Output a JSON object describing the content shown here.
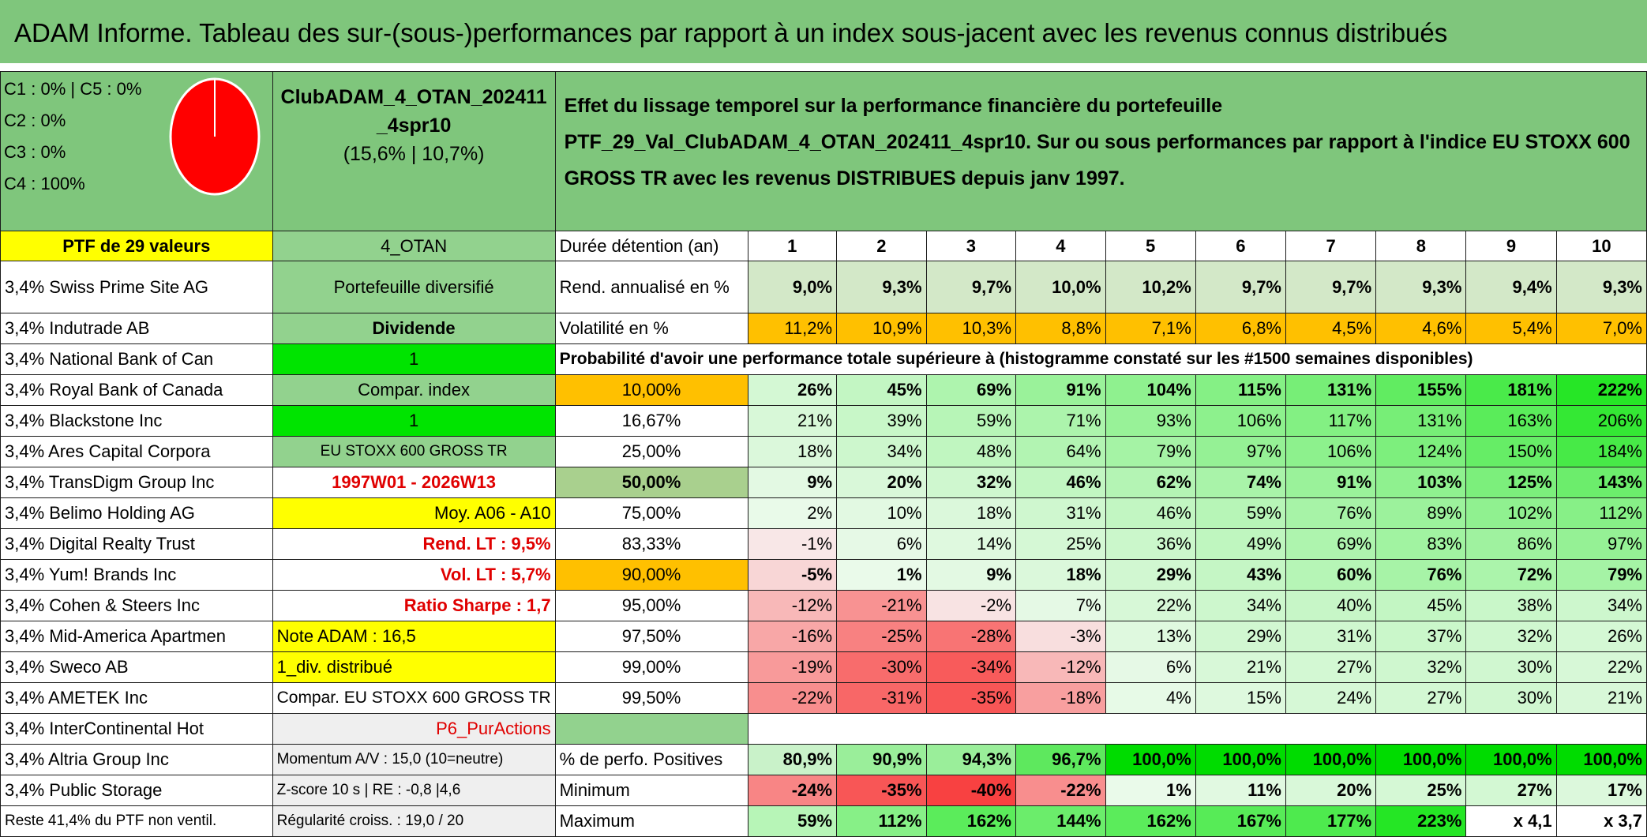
{
  "title": "ADAM Informe. Tableau des sur-(sous-)performances par rapport à un index sous-jacent avec les revenus connus distribués",
  "legend": [
    "C1 : 0% | C5 : 0%",
    "C2 : 0%",
    "C3 : 0%",
    "C4 : 100%"
  ],
  "pie": {
    "fill": "#ff0000",
    "stroke": "#ffffff",
    "C4": 100
  },
  "portfolio_name": "ClubADAM_4_OTAN_202411_4spr10",
  "portfolio_perf": "(15,6% | 10,7%)",
  "description": "Effet du lissage temporel sur la performance financière du portefeuille PTF_29_Val_ClubADAM_4_OTAN_202411_4spr10. Sur ou sous performances par rapport à l'indice EU STOXX 600 GROSS TR avec les revenus DISTRIBUES depuis janv 1997.",
  "ptf_label": "PTF de 29 valeurs",
  "code": "4_OTAN",
  "duration_label": "Durée détention (an)",
  "years": [
    "1",
    "2",
    "3",
    "4",
    "5",
    "6",
    "7",
    "8",
    "9",
    "10"
  ],
  "holdings": [
    "3,4% Swiss Prime Site AG",
    "3,4% Indutrade AB",
    "3,4% National Bank of Can",
    "3,4% Royal Bank of Canada",
    "3,4% Blackstone Inc",
    "3,4% Ares Capital Corpora",
    "3,4% TransDigm Group Inc",
    "3,4% Belimo Holding AG",
    "3,4% Digital Realty Trust",
    "3,4% Yum! Brands Inc",
    "3,4% Cohen & Steers Inc",
    "3,4% Mid-America Apartmen",
    "3,4% Sweco AB",
    "3,4% AMETEK Inc",
    "3,4% InterContinental Hot",
    "3,4% Altria Group Inc",
    "3,4% Public Storage",
    "Reste 41,4% du PTF non ventil."
  ],
  "info": [
    "Portefeuille diversifié",
    "Dividende",
    "1",
    "Compar. index",
    "1",
    "EU STOXX 600 GROSS TR",
    "1997W01 - 2026W13",
    "Moy. A06 - A10",
    "Rend. LT : 9,5%",
    "Vol. LT : 5,7%",
    "Ratio Sharpe : 1,7",
    "Note ADAM : 16,5",
    "1_div. distribué",
    "Compar. EU STOXX 600 GROSS TR",
    "P6_PurActions",
    "Momentum A/V : 15,0 (10=neutre)",
    "Z-score 10 s | RE : -0,8 |4,6",
    "Régularité croiss. : 19,0 / 20"
  ],
  "rend_label": "Rend. annualisé en %",
  "rend": [
    "9,0%",
    "9,3%",
    "9,7%",
    "10,0%",
    "10,2%",
    "9,7%",
    "9,7%",
    "9,3%",
    "9,4%",
    "9,3%"
  ],
  "vol_label": "Volatilité en %",
  "vol": [
    "11,2%",
    "10,9%",
    "10,3%",
    "8,8%",
    "7,1%",
    "6,8%",
    "4,5%",
    "4,6%",
    "5,4%",
    "7,0%"
  ],
  "prob_label": "Probabilité d'avoir une performance totale supérieure à (histogramme constaté sur les #1500 semaines disponibles)",
  "prob_rows": [
    {
      "q": "10,00%",
      "v": [
        "26%",
        "45%",
        "69%",
        "91%",
        "104%",
        "115%",
        "131%",
        "155%",
        "181%",
        "222%"
      ]
    },
    {
      "q": "16,67%",
      "v": [
        "21%",
        "39%",
        "59%",
        "71%",
        "93%",
        "106%",
        "117%",
        "131%",
        "163%",
        "206%"
      ]
    },
    {
      "q": "25,00%",
      "v": [
        "18%",
        "34%",
        "48%",
        "64%",
        "79%",
        "97%",
        "106%",
        "124%",
        "150%",
        "184%"
      ]
    },
    {
      "q": "50,00%",
      "v": [
        "9%",
        "20%",
        "32%",
        "46%",
        "62%",
        "74%",
        "91%",
        "103%",
        "125%",
        "143%"
      ]
    },
    {
      "q": "75,00%",
      "v": [
        "2%",
        "10%",
        "18%",
        "31%",
        "46%",
        "59%",
        "76%",
        "89%",
        "102%",
        "112%"
      ]
    },
    {
      "q": "83,33%",
      "v": [
        "-1%",
        "6%",
        "14%",
        "25%",
        "36%",
        "49%",
        "69%",
        "83%",
        "86%",
        "97%"
      ]
    },
    {
      "q": "90,00%",
      "v": [
        "-5%",
        "1%",
        "9%",
        "18%",
        "29%",
        "43%",
        "60%",
        "76%",
        "72%",
        "79%"
      ]
    },
    {
      "q": "95,00%",
      "v": [
        "-12%",
        "-21%",
        "-2%",
        "7%",
        "22%",
        "34%",
        "40%",
        "45%",
        "38%",
        "34%"
      ]
    },
    {
      "q": "97,50%",
      "v": [
        "-16%",
        "-25%",
        "-28%",
        "-3%",
        "13%",
        "29%",
        "31%",
        "37%",
        "32%",
        "26%"
      ]
    },
    {
      "q": "99,00%",
      "v": [
        "-19%",
        "-30%",
        "-34%",
        "-12%",
        "6%",
        "21%",
        "27%",
        "32%",
        "30%",
        "22%"
      ]
    },
    {
      "q": "99,50%",
      "v": [
        "-22%",
        "-31%",
        "-35%",
        "-18%",
        "4%",
        "15%",
        "24%",
        "27%",
        "30%",
        "21%"
      ]
    }
  ],
  "pos_label": "% de perfo. Positives",
  "pos": [
    "80,9%",
    "90,9%",
    "94,3%",
    "96,7%",
    "100,0%",
    "100,0%",
    "100,0%",
    "100,0%",
    "100,0%",
    "100,0%"
  ],
  "min_label": "Minimum",
  "min": [
    "-24%",
    "-35%",
    "-40%",
    "-22%",
    "1%",
    "11%",
    "20%",
    "25%",
    "27%",
    "17%"
  ],
  "max_label": "Maximum",
  "max": [
    "59%",
    "112%",
    "162%",
    "144%",
    "162%",
    "167%",
    "177%",
    "223%",
    "x 4,1",
    "x 3,7"
  ]
}
